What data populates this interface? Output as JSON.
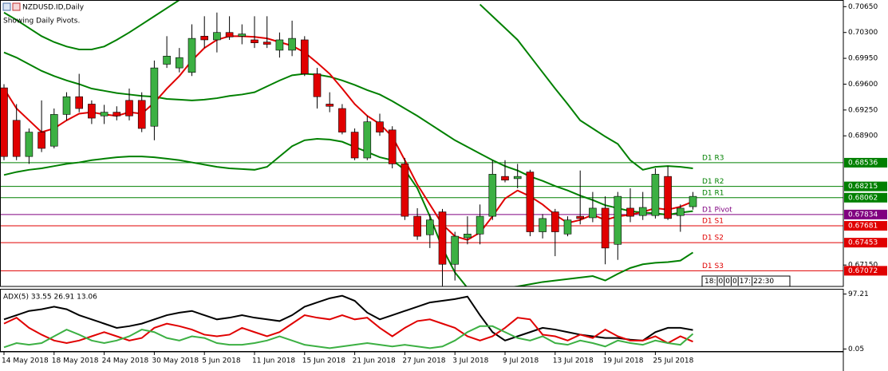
{
  "chart_data": [
    {
      "type": "candlestick",
      "title": "NZDUSD.ID,Daily",
      "subtitle": "Showing Daily Pivots.",
      "categories": [
        "14 May 2018",
        null,
        null,
        null,
        "18 May 2018",
        null,
        null,
        null,
        "24 May 2018",
        null,
        null,
        null,
        "30 May 2018",
        null,
        null,
        null,
        "5 Jun 2018",
        null,
        null,
        null,
        "11 Jun 2018",
        null,
        null,
        null,
        "15 Jun 2018",
        null,
        null,
        null,
        "21 Jun 2018",
        null,
        null,
        null,
        "27 Jun 2018",
        null,
        null,
        null,
        "3 Jul 2018",
        null,
        null,
        null,
        "9 Jul 2018",
        null,
        null,
        null,
        "13 Jul 2018",
        null,
        null,
        null,
        "19 Jul 2018",
        null,
        null,
        null,
        "25 Jul 2018",
        null,
        null,
        null
      ],
      "open": [
        0.6955,
        0.6911,
        0.6862,
        0.6895,
        0.6876,
        0.6919,
        0.6943,
        0.6933,
        0.6917,
        0.6922,
        0.6938,
        0.6938,
        0.6903,
        0.6987,
        0.6982,
        0.6976,
        0.7025,
        0.702,
        0.703,
        0.7025,
        0.702,
        0.7017,
        0.7006,
        0.7006,
        0.702,
        0.6974,
        0.6933,
        0.6927,
        0.6895,
        0.686,
        0.6909,
        0.6898,
        0.6852,
        0.6781,
        0.6756,
        0.6787,
        0.6716,
        0.6752,
        0.6757,
        0.6781,
        0.6835,
        0.6832,
        0.6841,
        0.676,
        0.6787,
        0.6757,
        0.6781,
        0.6779,
        0.6792,
        0.6743,
        0.6792,
        0.6782,
        0.6782,
        0.6835,
        0.6782,
        0.6794
      ],
      "high": [
        0.696,
        0.6933,
        0.69,
        0.6938,
        0.6927,
        0.6949,
        0.6974,
        0.6938,
        0.6932,
        0.693,
        0.6954,
        0.6949,
        0.6992,
        0.7025,
        0.7009,
        0.7041,
        0.7052,
        0.7057,
        0.7052,
        0.7041,
        0.7052,
        0.7052,
        0.703,
        0.7046,
        0.7025,
        0.6982,
        0.6949,
        0.6933,
        0.69,
        0.6917,
        0.692,
        0.6903,
        0.686,
        0.6792,
        0.6784,
        0.6791,
        0.676,
        0.6781,
        0.6797,
        0.6857,
        0.6857,
        0.6852,
        0.6844,
        0.6784,
        0.6791,
        0.6781,
        0.6843,
        0.6814,
        0.6808,
        0.6814,
        0.6819,
        0.6814,
        0.6846,
        0.6849,
        0.6797,
        0.6814
      ],
      "low": [
        0.6857,
        0.6857,
        0.6852,
        0.6868,
        0.6873,
        0.6911,
        0.6922,
        0.6906,
        0.6906,
        0.6911,
        0.6911,
        0.6895,
        0.6884,
        0.6982,
        0.6976,
        0.6971,
        0.7009,
        0.7003,
        0.702,
        0.7014,
        0.7009,
        0.7009,
        0.6996,
        0.6998,
        0.6971,
        0.6927,
        0.6922,
        0.6892,
        0.6857,
        0.6857,
        0.689,
        0.6846,
        0.6776,
        0.6749,
        0.6738,
        0.6684,
        0.6694,
        0.6743,
        0.6743,
        0.6776,
        0.6827,
        0.6819,
        0.6754,
        0.6751,
        0.6727,
        0.6754,
        0.677,
        0.6773,
        0.6716,
        0.6722,
        0.6773,
        0.6776,
        0.6778,
        0.6776,
        0.676,
        0.679
      ],
      "close": [
        0.6862,
        0.6862,
        0.6895,
        0.6873,
        0.6919,
        0.6943,
        0.6927,
        0.6914,
        0.6922,
        0.6917,
        0.6917,
        0.69,
        0.6982,
        0.6998,
        0.6996,
        0.7022,
        0.702,
        0.703,
        0.7024,
        0.7028,
        0.7016,
        0.7014,
        0.702,
        0.7022,
        0.6974,
        0.6943,
        0.693,
        0.6895,
        0.686,
        0.6909,
        0.6895,
        0.6852,
        0.6781,
        0.6754,
        0.6776,
        0.6716,
        0.6754,
        0.6757,
        0.6781,
        0.6838,
        0.683,
        0.6835,
        0.676,
        0.6778,
        0.676,
        0.6776,
        0.6778,
        0.6792,
        0.6738,
        0.6808,
        0.6781,
        0.6793,
        0.6838,
        0.6778,
        0.6792,
        0.6808
      ],
      "up_color": "#3cb043",
      "down_color": "#e00000",
      "overlays": [
        {
          "color": "#008000",
          "values": [
            0.7057,
            0.7047,
            0.7036,
            0.7025,
            0.7017,
            0.7011,
            0.7007,
            0.7007,
            0.7011,
            0.702,
            0.703,
            0.7041,
            0.7052,
            0.7063,
            0.7074,
            null,
            null,
            null,
            null,
            null,
            null,
            null,
            null,
            null,
            null,
            null,
            null,
            null,
            null,
            null,
            null,
            null,
            null,
            null,
            null,
            null,
            null,
            null,
            0.7068,
            0.7052,
            0.7036,
            0.702,
            0.6998,
            0.6976,
            0.6954,
            0.6933,
            0.6911,
            0.69,
            0.6889,
            0.6879,
            0.6857,
            0.6844,
            0.6848,
            0.6849,
            0.6848,
            0.6846
          ]
        },
        {
          "color": "#008000",
          "values": [
            0.7003,
            0.6996,
            0.6987,
            0.6978,
            0.6971,
            0.6965,
            0.696,
            0.6954,
            0.6951,
            0.6948,
            0.6946,
            0.6944,
            0.6943,
            0.694,
            0.6939,
            0.6938,
            0.6939,
            0.6941,
            0.6944,
            0.6946,
            0.6949,
            0.6957,
            0.6965,
            0.6972,
            0.6974,
            0.6973,
            0.697,
            0.6965,
            0.6959,
            0.6952,
            0.6946,
            0.6937,
            0.6927,
            0.6917,
            0.6906,
            0.6895,
            0.6884,
            0.6875,
            0.6866,
            0.6857,
            0.6849,
            0.6843,
            0.6835,
            0.6829,
            0.6822,
            0.6816,
            0.6809,
            0.6803,
            0.6796,
            0.6792,
            0.6788,
            0.6786,
            0.6785,
            0.6783,
            0.6786,
            0.6788
          ]
        },
        {
          "color": "#008000",
          "values": [
            0.6837,
            0.6841,
            0.6844,
            0.6846,
            0.6849,
            0.6852,
            0.6854,
            0.6857,
            0.6859,
            0.6861,
            0.6862,
            0.6862,
            0.6861,
            0.6859,
            0.6857,
            0.6854,
            0.6851,
            0.6848,
            0.6846,
            0.6845,
            0.6844,
            0.6848,
            0.6862,
            0.6876,
            0.6884,
            0.6886,
            0.6885,
            0.6882,
            0.6875,
            0.6868,
            0.6861,
            0.6857,
            0.6844,
            0.6819,
            0.6781,
            0.6738,
            0.6705,
            0.6684,
            null,
            null,
            0.6684,
            0.6686,
            0.6689,
            0.6692,
            0.6694,
            0.6696,
            0.6698,
            0.67,
            0.6694,
            0.6703,
            0.6711,
            0.6716,
            0.6718,
            0.6719,
            0.6721,
            0.6732
          ]
        },
        {
          "color": "#e00000",
          "values": [
            0.6954,
            0.6927,
            0.6911,
            0.6895,
            0.69,
            0.6911,
            0.692,
            0.6922,
            0.6919,
            0.6917,
            0.6922,
            0.692,
            0.6935,
            0.6954,
            0.6971,
            0.6992,
            0.7009,
            0.702,
            0.7025,
            0.7025,
            0.7024,
            0.7022,
            0.7017,
            0.7012,
            0.7003,
            0.6989,
            0.6974,
            0.6954,
            0.6933,
            0.6917,
            0.6906,
            0.6889,
            0.6857,
            0.6824,
            0.6797,
            0.677,
            0.6754,
            0.6749,
            0.6759,
            0.6781,
            0.6805,
            0.6816,
            0.6808,
            0.6797,
            0.6783,
            0.6772,
            0.6776,
            0.6783,
            0.6776,
            0.6781,
            0.6783,
            0.6787,
            0.6792,
            0.679,
            0.6794,
            0.6801
          ]
        }
      ],
      "levels": [
        {
          "label": "D1 R3",
          "value": 0.68536,
          "color": "#008000"
        },
        {
          "label": "D1 R2",
          "value": 0.68215,
          "color": "#008000"
        },
        {
          "label": "D1 R1",
          "value": 0.68062,
          "color": "#008000"
        },
        {
          "label": "D1 Pivot",
          "value": 0.67834,
          "color": "#800080"
        },
        {
          "label": "D1 S1",
          "value": 0.67681,
          "color": "#e00000"
        },
        {
          "label": "D1 S2",
          "value": 0.67453,
          "color": "#e00000"
        },
        {
          "label": "D1 S3",
          "value": 0.67072,
          "color": "#e00000"
        }
      ],
      "ylim": [
        0.6686,
        0.7074
      ],
      "yticks": [
        {
          "value": 0.7065,
          "label": "0.70650"
        },
        {
          "value": 0.703,
          "label": "0.70300"
        },
        {
          "value": 0.6995,
          "label": "0.69950"
        },
        {
          "value": 0.696,
          "label": "0.69600"
        },
        {
          "value": 0.6925,
          "label": "0.69250"
        },
        {
          "value": 0.689,
          "label": "0.68900"
        },
        {
          "value": 0.6715,
          "label": "0.67150"
        }
      ],
      "countdown": [
        "18:",
        "0",
        "0",
        "0",
        "17:",
        "22:30"
      ]
    },
    {
      "type": "line",
      "title": "ADX(5) 33.55 26.91 13.06",
      "series": [
        {
          "color": "#000000",
          "values": [
            52.4,
            59.8,
            67.3,
            70.3,
            74.8,
            70.3,
            59.8,
            52.4,
            44.9,
            37.4,
            40.4,
            44.9,
            52.4,
            59.8,
            64.3,
            67.3,
            59.8,
            52.4,
            55.4,
            59.8,
            55.4,
            52.4,
            49.4,
            59.8,
            74.8,
            82.3,
            89.7,
            94.2,
            85.2,
            64.3,
            52.4,
            59.8,
            67.3,
            74.8,
            82.3,
            85.2,
            88.2,
            92.7,
            59.8,
            29.9,
            15.0,
            22.5,
            29.9,
            37.4,
            34.4,
            29.9,
            25.4,
            22.5,
            19.5,
            19.5,
            16.5,
            15.0,
            29.9,
            37.4,
            37.4,
            33.55
          ]
        },
        {
          "color": "#e00000",
          "values": [
            44.9,
            55.4,
            37.4,
            25.4,
            15.0,
            10.5,
            15.0,
            22.5,
            29.9,
            22.5,
            15.0,
            19.5,
            37.4,
            44.9,
            40.4,
            34.4,
            25.4,
            22.5,
            25.4,
            37.4,
            29.9,
            22.5,
            29.9,
            44.9,
            59.8,
            55.4,
            52.4,
            59.8,
            52.4,
            55.4,
            37.4,
            22.5,
            37.4,
            49.4,
            52.4,
            44.9,
            37.4,
            22.5,
            15.0,
            22.5,
            37.4,
            55.4,
            52.4,
            25.4,
            22.5,
            15.0,
            25.4,
            19.5,
            34.4,
            22.5,
            15.0,
            15.0,
            22.5,
            10.5,
            22.5,
            13.06
          ]
        },
        {
          "color": "#3cb043",
          "values": [
            3.0,
            10.5,
            7.5,
            10.5,
            22.5,
            34.4,
            25.4,
            15.0,
            10.5,
            15.0,
            22.5,
            34.4,
            29.9,
            19.5,
            15.0,
            22.5,
            19.5,
            10.5,
            7.5,
            7.5,
            10.5,
            15.0,
            22.5,
            15.0,
            7.5,
            4.5,
            1.5,
            4.5,
            7.5,
            10.5,
            7.5,
            4.5,
            7.5,
            4.5,
            1.5,
            4.5,
            15.0,
            29.9,
            40.4,
            40.4,
            29.9,
            19.5,
            15.0,
            22.5,
            10.5,
            7.5,
            15.0,
            10.5,
            4.5,
            15.0,
            10.5,
            7.5,
            15.0,
            10.5,
            7.5,
            26.91
          ]
        }
      ],
      "ylim": [
        -5,
        105
      ],
      "yticks": [
        97.21,
        0.05
      ]
    }
  ]
}
